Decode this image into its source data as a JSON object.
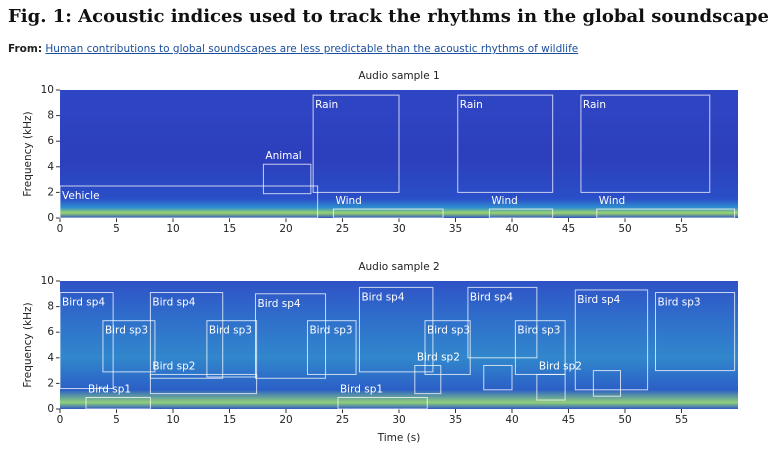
{
  "header": {
    "title": "Fig. 1: Acoustic indices used to track the rhythms in the global soundscape.",
    "from_label": "From:",
    "from_link": "Human contributions to global soundscapes are less predictable than the acoustic rhythms of wildlife"
  },
  "chart_data": [
    {
      "type": "spectrogram",
      "title": "Audio sample 1",
      "ylabel": "Frequency (kHz)",
      "xlim": [
        0,
        60
      ],
      "ylim": [
        0,
        10
      ],
      "xticks": [
        0,
        5,
        10,
        15,
        20,
        25,
        30,
        35,
        40,
        45,
        50,
        55
      ],
      "yticks": [
        0,
        2,
        4,
        6,
        8,
        10
      ],
      "regions": [
        {
          "label": "Vehicle",
          "x": [
            0,
            22.8
          ],
          "y": [
            0,
            2.5
          ]
        },
        {
          "label": "Animal",
          "x": [
            18,
            22.2
          ],
          "y": [
            1.9,
            4.2
          ]
        },
        {
          "label": "Rain",
          "x": [
            22.4,
            30
          ],
          "y": [
            2,
            9.6
          ]
        },
        {
          "label": "Rain",
          "x": [
            35.2,
            43.6
          ],
          "y": [
            2,
            9.6
          ]
        },
        {
          "label": "Rain",
          "x": [
            46.1,
            57.5
          ],
          "y": [
            2,
            9.6
          ]
        },
        {
          "label": "Wind",
          "x": [
            24.2,
            33.9
          ],
          "y": [
            0,
            0.7
          ]
        },
        {
          "label": "Wind",
          "x": [
            38,
            43.6
          ],
          "y": [
            0,
            0.7
          ]
        },
        {
          "label": "Wind",
          "x": [
            47.5,
            59.7
          ],
          "y": [
            0,
            0.7
          ]
        }
      ]
    },
    {
      "type": "spectrogram",
      "title": "Audio sample 2",
      "ylabel": "Frequency (kHz)",
      "xlabel": "Time (s)",
      "xlim": [
        0,
        60
      ],
      "ylim": [
        0,
        10
      ],
      "xticks": [
        0,
        5,
        10,
        15,
        20,
        25,
        30,
        35,
        40,
        45,
        50,
        55
      ],
      "yticks": [
        0,
        2,
        4,
        6,
        8,
        10
      ],
      "regions": [
        {
          "label": "Bird sp4",
          "x": [
            0,
            4.7
          ],
          "y": [
            1.6,
            9.1
          ]
        },
        {
          "label": "Bird sp3",
          "x": [
            3.8,
            8.4
          ],
          "y": [
            2.9,
            6.9
          ]
        },
        {
          "label": "Bird sp4",
          "x": [
            8,
            14.4
          ],
          "y": [
            2.4,
            9.1
          ]
        },
        {
          "label": "Bird sp2",
          "x": [
            8,
            17.4
          ],
          "y": [
            1.2,
            2.7
          ]
        },
        {
          "label": "Bird sp3",
          "x": [
            13,
            17.4
          ],
          "y": [
            2.5,
            6.9
          ]
        },
        {
          "label": "Bird sp4",
          "x": [
            17.3,
            23.5
          ],
          "y": [
            2.4,
            9
          ]
        },
        {
          "label": "Bird sp3",
          "x": [
            21.9,
            26.2
          ],
          "y": [
            2.7,
            6.9
          ]
        },
        {
          "label": "Bird sp4",
          "x": [
            26.5,
            33
          ],
          "y": [
            2.9,
            9.5
          ]
        },
        {
          "label": "Bird sp1",
          "x": [
            2.3,
            8
          ],
          "y": [
            0,
            0.9
          ]
        },
        {
          "label": "Bird sp1",
          "x": [
            24.6,
            32.5
          ],
          "y": [
            0,
            0.9
          ]
        },
        {
          "label": "Bird sp3",
          "x": [
            32.3,
            36.3
          ],
          "y": [
            2.7,
            6.9
          ]
        },
        {
          "label": "Bird sp2",
          "x": [
            31.4,
            33.7
          ],
          "y": [
            1.2,
            3.4
          ]
        },
        {
          "label": "Bird sp4",
          "x": [
            36.1,
            42.2
          ],
          "y": [
            4,
            9.5
          ]
        },
        {
          "label": "Bird sp3",
          "x": [
            40.3,
            44.7
          ],
          "y": [
            2.7,
            6.9
          ]
        },
        {
          "x": [
            37.5,
            40
          ],
          "y": [
            1.5,
            3.4
          ]
        },
        {
          "label": "Bird sp2",
          "x": [
            42.2,
            44.7
          ],
          "y": [
            0.7,
            2.7
          ]
        },
        {
          "label": "Bird sp4",
          "x": [
            45.6,
            52
          ],
          "y": [
            1.5,
            9.3
          ]
        },
        {
          "x": [
            47.2,
            49.6
          ],
          "y": [
            1,
            3
          ]
        },
        {
          "label": "Bird sp3",
          "x": [
            52.7,
            59.7
          ],
          "y": [
            3,
            9.1
          ]
        }
      ]
    }
  ]
}
